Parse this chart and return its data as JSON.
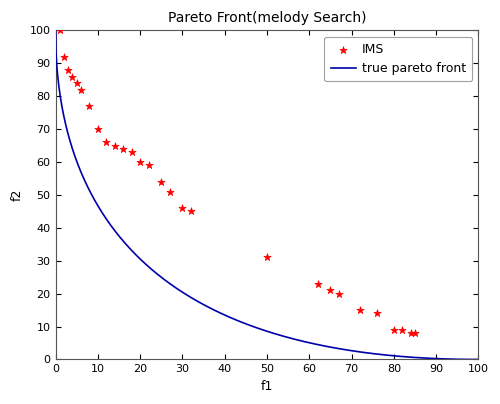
{
  "title": "Pareto Front(melody Search)",
  "xlabel": "f1",
  "ylabel": "f2",
  "xlim": [
    0,
    100
  ],
  "ylim": [
    0,
    100
  ],
  "xticks": [
    0,
    10,
    20,
    30,
    40,
    50,
    60,
    70,
    80,
    90,
    100
  ],
  "yticks": [
    0,
    10,
    20,
    30,
    40,
    50,
    60,
    70,
    80,
    90,
    100
  ],
  "scatter_x": [
    1,
    2,
    3,
    4,
    5,
    6,
    8,
    10,
    12,
    14,
    16,
    18,
    20,
    22,
    25,
    27,
    30,
    32,
    50,
    62,
    65,
    67,
    72,
    76,
    80,
    82,
    84,
    85
  ],
  "scatter_y": [
    100,
    92,
    88,
    86,
    84,
    82,
    77,
    70,
    66,
    65,
    64,
    63,
    60,
    59,
    54,
    51,
    46,
    45,
    31,
    23,
    21,
    20,
    15,
    14,
    9,
    9,
    8,
    8
  ],
  "scatter_color": "#FF0000",
  "scatter_marker": "*",
  "scatter_size": 30,
  "line_color": "#0000AA",
  "line_width": 1.2,
  "legend_ims": "IMS",
  "legend_pareto": "true pareto front",
  "bg_color": "#FFFFFF",
  "title_fontsize": 10,
  "axis_fontsize": 9,
  "tick_fontsize": 8,
  "legend_fontsize": 9,
  "figsize": [
    5.0,
    4.04
  ],
  "dpi": 100
}
